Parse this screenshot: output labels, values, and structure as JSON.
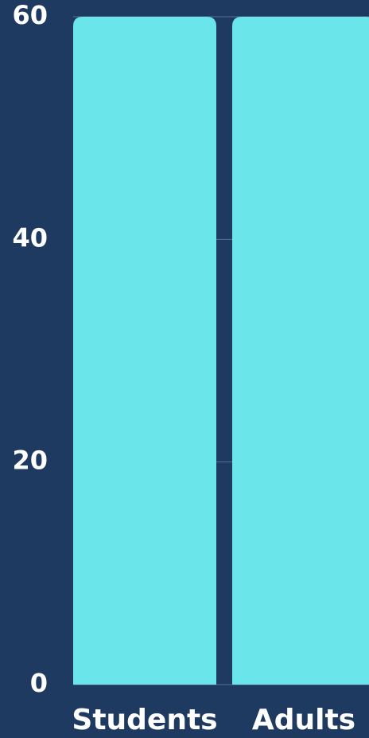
{
  "chart_data": {
    "type": "bar",
    "categories": [
      "Students",
      "Adults"
    ],
    "values": [
      60,
      60
    ],
    "color": "#6ae5ea",
    "ylim": [
      0,
      60
    ],
    "yticks": [
      0,
      20,
      40,
      60
    ],
    "grid": true
  }
}
